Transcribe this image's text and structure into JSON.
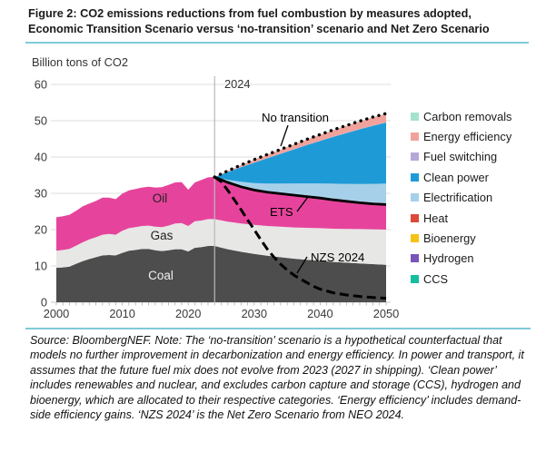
{
  "figure": {
    "title_line1": "Figure 2: CO2 emissions reductions from fuel combustion by measures adopted,",
    "title_line2": "Economic Transition Scenario versus ‘no-transition’ scenario and Net Zero Scenario",
    "y_axis_title": "Billion tons of CO2",
    "source_note": "Source: BloombergNEF. Note: The ‘no-transition’ scenario is a hypothetical counterfactual that models no further improvement in decarbonization and energy efficiency. In power and transport, it assumes that the future fuel mix does not evolve from 2023 (2027 in shipping). ‘Clean power’ includes renewables and nuclear, and excludes carbon capture and storage (CCS), hydrogen and bioenergy, which are allocated to their respective categories. ‘Energy efficiency’ includes demand-side efficiency gains. ‘NZS 2024’ is the Net Zero Scenario from NEO 2024.",
    "accent_rule_color": "#7fcbd9"
  },
  "legend": {
    "items": [
      {
        "label": "Carbon removals"
      },
      {
        "label": "Energy efficiency"
      },
      {
        "label": "Fuel switching"
      },
      {
        "label": "Clean power"
      },
      {
        "label": "Electrification"
      },
      {
        "label": "Heat"
      },
      {
        "label": "Bioenergy"
      },
      {
        "label": "Hydrogen"
      },
      {
        "label": "CCS"
      }
    ]
  },
  "chart_data": {
    "type": "area",
    "title": "CO2 emissions reductions from fuel combustion by measures adopted",
    "ylabel": "Billion tons of CO2",
    "xlim": [
      2000,
      2050
    ],
    "ylim": [
      0,
      60
    ],
    "x_ticks": [
      2000,
      2010,
      2020,
      2030,
      2040,
      2050
    ],
    "y_ticks": [
      0,
      10,
      20,
      30,
      40,
      50,
      60
    ],
    "grid": "horizontal",
    "legend_position": "right",
    "divider_year": 2024,
    "divider_label": "2024",
    "history": {
      "years": [
        2000,
        2001,
        2002,
        2003,
        2004,
        2005,
        2006,
        2007,
        2008,
        2009,
        2010,
        2011,
        2012,
        2013,
        2014,
        2015,
        2016,
        2017,
        2018,
        2019,
        2020,
        2021,
        2022,
        2023,
        2024
      ],
      "coal": [
        9.5,
        9.6,
        9.8,
        10.6,
        11.3,
        11.9,
        12.4,
        12.9,
        13.0,
        12.9,
        13.6,
        14.2,
        14.4,
        14.7,
        14.7,
        14.3,
        14.1,
        14.3,
        14.6,
        14.6,
        14.0,
        15.0,
        15.2,
        15.5,
        15.5
      ],
      "gas": [
        4.7,
        4.8,
        4.9,
        5.0,
        5.2,
        5.4,
        5.5,
        5.7,
        5.8,
        5.7,
        6.1,
        6.2,
        6.3,
        6.3,
        6.4,
        6.5,
        6.6,
        6.8,
        7.1,
        7.2,
        7.0,
        7.3,
        7.3,
        7.4,
        7.4
      ],
      "oil": [
        9.2,
        9.3,
        9.4,
        9.6,
        9.9,
        9.9,
        10.0,
        10.2,
        10.0,
        9.8,
        10.2,
        10.4,
        10.5,
        10.6,
        10.7,
        10.8,
        11.0,
        11.2,
        11.3,
        11.3,
        10.0,
        10.7,
        11.2,
        11.5,
        11.6
      ]
    },
    "projection": {
      "years": [
        2024,
        2026,
        2028,
        2030,
        2032,
        2034,
        2036,
        2038,
        2040,
        2042,
        2044,
        2046,
        2048,
        2050
      ],
      "coal": [
        15.5,
        14.6,
        13.9,
        13.3,
        12.8,
        12.4,
        12.0,
        11.7,
        11.4,
        11.1,
        10.9,
        10.7,
        10.5,
        10.3
      ],
      "gas": [
        7.4,
        7.6,
        7.8,
        8.0,
        8.2,
        8.4,
        8.6,
        8.8,
        9.0,
        9.15,
        9.3,
        9.45,
        9.6,
        9.7
      ],
      "oil": [
        11.6,
        10.8,
        10.1,
        9.6,
        9.3,
        9.1,
        8.9,
        8.6,
        8.3,
        7.95,
        7.6,
        7.25,
        7.0,
        6.9
      ],
      "no_transition_total": [
        34.5,
        36.2,
        37.8,
        39.3,
        40.7,
        42.1,
        43.5,
        44.9,
        46.2,
        47.5,
        48.7,
        49.9,
        51.0,
        52.0
      ],
      "reduction_wedges_bottom_to_top": [
        {
          "name": "CCS",
          "share_of_gap": 0.002
        },
        {
          "name": "Hydrogen",
          "share_of_gap": 0.003
        },
        {
          "name": "Bioenergy",
          "share_of_gap": 0.004
        },
        {
          "name": "Heat",
          "share_of_gap": 0.006
        },
        {
          "name": "Electrification",
          "share_of_gap": 0.215
        },
        {
          "name": "Clean power",
          "share_of_gap": 0.67
        },
        {
          "name": "Fuel switching",
          "share_of_gap": 0.003
        },
        {
          "name": "Energy efficiency",
          "share_of_gap": 0.092
        },
        {
          "name": "Carbon removals",
          "share_of_gap": 0.005
        }
      ]
    },
    "nzs": {
      "years": [
        2024,
        2025,
        2026,
        2027,
        2028,
        2029,
        2030,
        2031,
        2032,
        2033,
        2034,
        2035,
        2036,
        2037,
        2038,
        2039,
        2040,
        2042,
        2044,
        2046,
        2048,
        2050
      ],
      "values": [
        34.5,
        33.2,
        30.8,
        28.2,
        25.5,
        22.7,
        20.0,
        17.2,
        14.6,
        12.4,
        10.5,
        8.9,
        7.5,
        6.4,
        5.4,
        4.4,
        3.6,
        2.6,
        2.0,
        1.6,
        1.3,
        1.1
      ]
    },
    "annotations": {
      "divider_label": "2024",
      "no_transition_label": "No transition",
      "ets_label": "ETS",
      "nzs_label": "NZS 2024",
      "oil_label": "Oil",
      "gas_label": "Gas",
      "coal_label": "Coal"
    },
    "colors": {
      "Coal": "#4d4d4d",
      "Gas": "#e7e7e5",
      "Oil": "#e6449c",
      "Carbon removals": "#a5e2cb",
      "Energy efficiency": "#f1a29b",
      "Fuel switching": "#b6a8d8",
      "Clean power": "#1e9bd7",
      "Electrification": "#a6d0e9",
      "Heat": "#dd4a38",
      "Bioenergy": "#f5c315",
      "Hydrogen": "#7b54b8",
      "CCS": "#16bd9e",
      "gridline": "#dcdcdc",
      "axis_text": "#3a3a3a",
      "divider_line": "#b9b9b9",
      "line_black": "#000000"
    }
  }
}
